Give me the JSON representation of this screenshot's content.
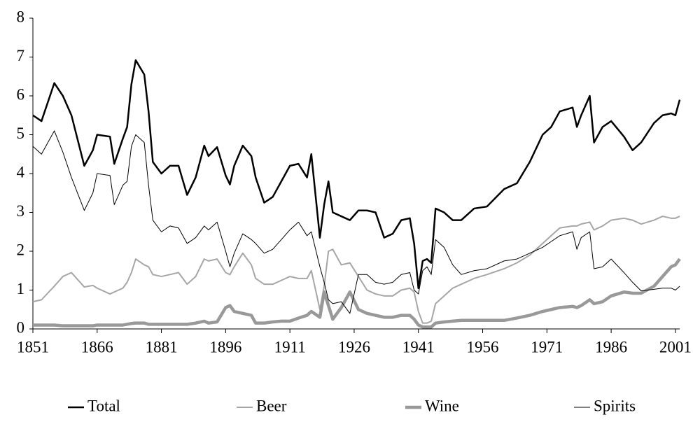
{
  "chart_data": {
    "type": "line",
    "x": [
      1851,
      1853,
      1856,
      1858,
      1860,
      1863,
      1865,
      1866,
      1869,
      1870,
      1872,
      1873,
      1874,
      1875,
      1877,
      1878,
      1879,
      1881,
      1883,
      1885,
      1887,
      1889,
      1891,
      1892,
      1894,
      1896,
      1897,
      1898,
      1900,
      1902,
      1903,
      1905,
      1907,
      1909,
      1911,
      1913,
      1915,
      1916,
      1918,
      1919,
      1920,
      1921,
      1923,
      1925,
      1927,
      1929,
      1931,
      1933,
      1935,
      1937,
      1939,
      1940,
      1941,
      1942,
      1943,
      1944,
      1945,
      1947,
      1949,
      1951,
      1954,
      1957,
      1961,
      1964,
      1967,
      1970,
      1972,
      1974,
      1977,
      1978,
      1979,
      1981,
      1982,
      1984,
      1986,
      1989,
      1991,
      1993,
      1996,
      1998,
      2000,
      2001,
      2002
    ],
    "series": [
      {
        "name": "Total",
        "color": "#000000",
        "width": 2.5,
        "values": [
          5.5,
          5.35,
          6.33,
          6.0,
          5.5,
          4.2,
          4.6,
          5.0,
          4.95,
          4.25,
          4.9,
          5.2,
          6.3,
          6.92,
          6.55,
          5.6,
          4.3,
          4.0,
          4.2,
          4.2,
          3.45,
          3.9,
          4.72,
          4.45,
          4.68,
          3.95,
          3.72,
          4.2,
          4.72,
          4.45,
          3.9,
          3.25,
          3.4,
          3.8,
          4.2,
          4.25,
          3.9,
          4.5,
          2.35,
          3.2,
          3.8,
          3.0,
          2.9,
          2.8,
          3.05,
          3.05,
          3.0,
          2.35,
          2.45,
          2.8,
          2.85,
          2.2,
          1.05,
          1.75,
          1.8,
          1.7,
          3.1,
          3.0,
          2.8,
          2.8,
          3.1,
          3.15,
          3.6,
          3.75,
          4.3,
          5.0,
          5.2,
          5.6,
          5.7,
          5.2,
          5.5,
          6.0,
          4.8,
          5.2,
          5.35,
          4.95,
          4.6,
          4.8,
          5.3,
          5.5,
          5.55,
          5.5,
          5.9
        ]
      },
      {
        "name": "Beer",
        "color": "#a6a6a6",
        "width": 2,
        "values": [
          0.7,
          0.75,
          1.1,
          1.35,
          1.45,
          1.08,
          1.12,
          1.05,
          0.9,
          0.95,
          1.05,
          1.2,
          1.45,
          1.8,
          1.65,
          1.6,
          1.4,
          1.35,
          1.4,
          1.45,
          1.15,
          1.35,
          1.8,
          1.75,
          1.8,
          1.45,
          1.4,
          1.6,
          1.95,
          1.65,
          1.3,
          1.15,
          1.15,
          1.25,
          1.35,
          1.3,
          1.3,
          1.5,
          0.5,
          1.1,
          2.0,
          2.05,
          1.65,
          1.7,
          1.35,
          1.0,
          0.9,
          0.85,
          0.85,
          1.0,
          1.05,
          0.95,
          0.45,
          0.15,
          0.15,
          0.2,
          0.65,
          0.85,
          1.05,
          1.15,
          1.3,
          1.4,
          1.55,
          1.7,
          1.9,
          2.2,
          2.4,
          2.6,
          2.65,
          2.65,
          2.7,
          2.75,
          2.55,
          2.65,
          2.8,
          2.85,
          2.8,
          2.7,
          2.8,
          2.9,
          2.85,
          2.85,
          2.9
        ]
      },
      {
        "name": "Wine",
        "color": "#999999",
        "width": 4.5,
        "values": [
          0.1,
          0.1,
          0.1,
          0.08,
          0.08,
          0.08,
          0.08,
          0.1,
          0.1,
          0.1,
          0.1,
          0.12,
          0.14,
          0.15,
          0.15,
          0.12,
          0.12,
          0.12,
          0.12,
          0.12,
          0.12,
          0.15,
          0.2,
          0.15,
          0.18,
          0.55,
          0.6,
          0.45,
          0.4,
          0.35,
          0.15,
          0.15,
          0.18,
          0.2,
          0.2,
          0.28,
          0.35,
          0.45,
          0.3,
          0.95,
          0.6,
          0.25,
          0.55,
          0.95,
          0.5,
          0.4,
          0.35,
          0.3,
          0.3,
          0.35,
          0.35,
          0.25,
          0.1,
          0.05,
          0.05,
          0.05,
          0.15,
          0.18,
          0.2,
          0.22,
          0.22,
          0.22,
          0.22,
          0.28,
          0.35,
          0.45,
          0.5,
          0.55,
          0.58,
          0.55,
          0.6,
          0.75,
          0.65,
          0.7,
          0.85,
          0.95,
          0.92,
          0.92,
          1.1,
          1.35,
          1.6,
          1.65,
          1.8
        ]
      },
      {
        "name": "Spirits",
        "color": "#000000",
        "width": 1,
        "values": [
          4.7,
          4.5,
          5.1,
          4.55,
          3.9,
          3.05,
          3.5,
          4.0,
          3.95,
          3.2,
          3.7,
          3.8,
          4.7,
          5.0,
          4.8,
          3.7,
          2.8,
          2.5,
          2.65,
          2.6,
          2.2,
          2.35,
          2.65,
          2.55,
          2.75,
          2.0,
          1.6,
          1.95,
          2.45,
          2.3,
          2.2,
          1.95,
          2.05,
          2.3,
          2.55,
          2.75,
          2.4,
          2.5,
          1.6,
          1.2,
          0.75,
          0.65,
          0.7,
          0.4,
          1.4,
          1.4,
          1.2,
          1.15,
          1.2,
          1.4,
          1.45,
          1.0,
          0.9,
          1.5,
          1.6,
          1.4,
          2.3,
          2.1,
          1.65,
          1.4,
          1.5,
          1.55,
          1.75,
          1.8,
          1.95,
          2.1,
          2.25,
          2.4,
          2.5,
          2.05,
          2.35,
          2.5,
          1.55,
          1.6,
          1.8,
          1.45,
          1.2,
          0.98,
          1.02,
          1.05,
          1.05,
          1.0,
          1.1
        ]
      }
    ],
    "xlim": [
      1851,
      2002
    ],
    "xticks": [
      1851,
      1866,
      1881,
      1896,
      1911,
      1926,
      1941,
      1956,
      1971,
      1986,
      2001
    ],
    "ylim": [
      0,
      8
    ],
    "yticks": [
      0,
      1,
      2,
      3,
      4,
      5,
      6,
      7,
      8
    ],
    "legend": "bottom"
  }
}
